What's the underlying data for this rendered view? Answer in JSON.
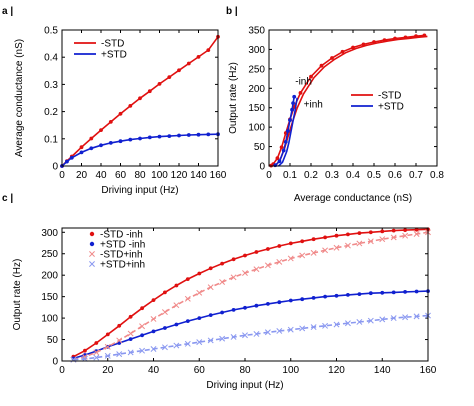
{
  "colors": {
    "std_minus": "#e01010",
    "std_plus": "#1020d0",
    "std_minus_inh": "#f08a8a",
    "std_plus_inh": "#8a98f0"
  },
  "chart_data": [
    {
      "panel": "a |",
      "type": "line",
      "xlabel": "Driving input (Hz)",
      "ylabel": "Average conductance (nS)",
      "xlim": [
        0,
        160
      ],
      "ylim": [
        0,
        0.5
      ],
      "xticks": [
        0,
        20,
        40,
        60,
        80,
        100,
        120,
        140,
        160
      ],
      "yticks": [
        0,
        0.1,
        0.2,
        0.3,
        0.4,
        0.5
      ],
      "legend_position": "top-left",
      "series": [
        {
          "name": "-STD",
          "color": "#e01010",
          "style": "line+dots",
          "x": [
            0,
            5,
            10,
            20,
            30,
            40,
            50,
            60,
            70,
            80,
            90,
            100,
            110,
            120,
            130,
            140,
            150,
            160
          ],
          "y": [
            0.0,
            0.018,
            0.035,
            0.069,
            0.101,
            0.132,
            0.162,
            0.192,
            0.221,
            0.249,
            0.275,
            0.302,
            0.327,
            0.352,
            0.377,
            0.401,
            0.426,
            0.475
          ]
        },
        {
          "name": "+STD",
          "color": "#1020d0",
          "style": "line+dots",
          "x": [
            0,
            5,
            10,
            20,
            30,
            40,
            50,
            60,
            70,
            80,
            90,
            100,
            110,
            120,
            130,
            140,
            150,
            160
          ],
          "y": [
            0.0,
            0.016,
            0.03,
            0.05,
            0.065,
            0.076,
            0.085,
            0.091,
            0.097,
            0.101,
            0.105,
            0.108,
            0.11,
            0.112,
            0.114,
            0.115,
            0.116,
            0.117
          ]
        }
      ]
    },
    {
      "panel": "b |",
      "type": "line",
      "xlabel": "Average conductance (nS)",
      "ylabel": "Output rate (Hz)",
      "xlim": [
        0,
        0.8
      ],
      "ylim": [
        0,
        350
      ],
      "xticks": [
        0,
        0.1,
        0.2,
        0.3,
        0.4,
        0.5,
        0.6,
        0.7,
        0.8
      ],
      "yticks": [
        0,
        50,
        100,
        150,
        200,
        250,
        300,
        350
      ],
      "legend_position": "center-right",
      "annotations": [
        {
          "text": "-inh",
          "x": 0.125,
          "y": 210
        },
        {
          "text": "+inh",
          "x": 0.165,
          "y": 150
        }
      ],
      "series": [
        {
          "name": "-STD",
          "color": "#e01010",
          "style": "lines+dots",
          "x": [
            0.01,
            0.02,
            0.04,
            0.06,
            0.08,
            0.1,
            0.12,
            0.15,
            0.2,
            0.25,
            0.3,
            0.35,
            0.4,
            0.45,
            0.5,
            0.55,
            0.6,
            0.65,
            0.7,
            0.74
          ],
          "y": [
            1,
            5,
            20,
            48,
            85,
            120,
            152,
            188,
            230,
            258,
            278,
            294,
            305,
            313,
            319,
            324,
            328,
            331,
            334,
            336
          ]
        },
        {
          "name": "+STD",
          "color": "#1020d0",
          "style": "lines+dots",
          "x": [
            0.03,
            0.05,
            0.07,
            0.08,
            0.09,
            0.1,
            0.11,
            0.115,
            0.12
          ],
          "y": [
            2,
            12,
            40,
            62,
            90,
            118,
            145,
            162,
            178
          ]
        }
      ]
    },
    {
      "panel": "c |",
      "type": "line",
      "xlabel": "Driving input (Hz)",
      "ylabel": "Output rate (Hz)",
      "xlim": [
        0,
        160
      ],
      "ylim": [
        0,
        310
      ],
      "xticks": [
        0,
        20,
        40,
        60,
        80,
        100,
        120,
        140,
        160
      ],
      "yticks": [
        0,
        50,
        100,
        150,
        200,
        250,
        300
      ],
      "legend_position": "top-left",
      "series": [
        {
          "name": "-STD -inh",
          "color": "#e01010",
          "marker": "dot",
          "line": "solid",
          "x": [
            5,
            10,
            15,
            20,
            25,
            30,
            35,
            40,
            45,
            50,
            55,
            60,
            65,
            70,
            75,
            80,
            85,
            90,
            95,
            100,
            105,
            110,
            115,
            120,
            125,
            130,
            135,
            140,
            145,
            150,
            155,
            160
          ],
          "y": [
            10,
            24,
            42,
            62,
            82,
            103,
            123,
            142,
            160,
            176,
            191,
            204,
            216,
            227,
            237,
            246,
            254,
            261,
            268,
            274,
            279,
            284,
            288,
            292,
            295,
            298,
            300,
            302,
            304,
            305,
            306,
            307
          ]
        },
        {
          "name": "+STD -inh",
          "color": "#1020d0",
          "marker": "dot",
          "line": "solid",
          "x": [
            5,
            10,
            15,
            20,
            25,
            30,
            35,
            40,
            45,
            50,
            55,
            60,
            65,
            70,
            75,
            80,
            85,
            90,
            95,
            100,
            105,
            110,
            115,
            120,
            125,
            130,
            135,
            140,
            145,
            150,
            155,
            160
          ],
          "y": [
            6,
            14,
            23,
            33,
            42,
            51,
            60,
            69,
            77,
            85,
            93,
            100,
            107,
            113,
            119,
            124,
            129,
            133,
            137,
            141,
            144,
            147,
            150,
            152,
            154,
            156,
            158,
            159,
            160,
            161,
            162,
            163
          ]
        },
        {
          "name": "-STD+inh",
          "color": "#f08a8a",
          "marker": "cross",
          "line": "dashed",
          "x": [
            5,
            10,
            15,
            20,
            25,
            30,
            35,
            40,
            45,
            50,
            55,
            60,
            65,
            70,
            75,
            80,
            85,
            90,
            95,
            100,
            105,
            110,
            115,
            120,
            125,
            130,
            135,
            140,
            145,
            150,
            155,
            160
          ],
          "y": [
            3,
            10,
            20,
            33,
            48,
            64,
            81,
            98,
            114,
            130,
            145,
            159,
            172,
            184,
            195,
            205,
            214,
            223,
            231,
            239,
            246,
            252,
            258,
            264,
            269,
            274,
            279,
            284,
            288,
            292,
            296,
            300
          ]
        },
        {
          "name": "+STD+inh",
          "color": "#8a98f0",
          "marker": "cross",
          "line": "dashed",
          "x": [
            5,
            10,
            15,
            20,
            25,
            30,
            35,
            40,
            45,
            50,
            55,
            60,
            65,
            70,
            75,
            80,
            85,
            90,
            95,
            100,
            105,
            110,
            115,
            120,
            125,
            130,
            135,
            140,
            145,
            150,
            155,
            160
          ],
          "y": [
            3,
            5,
            8,
            12,
            16,
            20,
            24,
            28,
            32,
            36,
            40,
            44,
            48,
            52,
            56,
            60,
            63,
            67,
            70,
            73,
            76,
            79,
            82,
            85,
            88,
            91,
            94,
            97,
            100,
            102,
            104,
            106
          ]
        }
      ]
    }
  ]
}
